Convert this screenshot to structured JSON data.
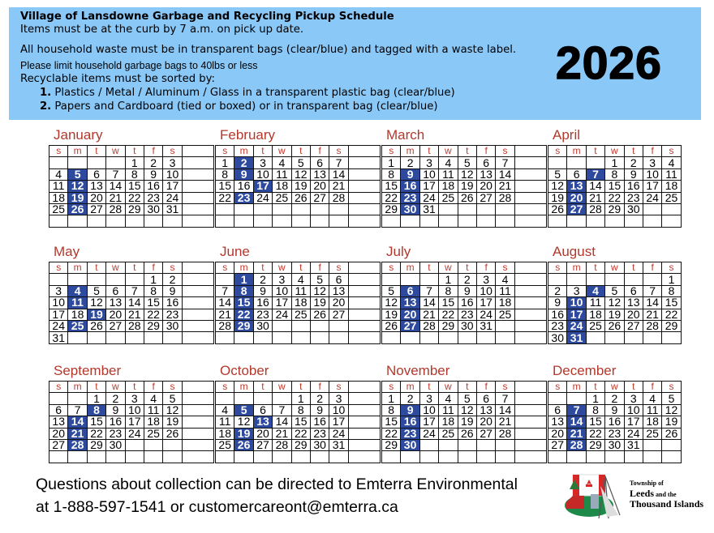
{
  "header": {
    "title": "Village of Lansdowne Garbage and Recycling Pickup Schedule",
    "curb_note": "Items must be at the curb by 7 a.m. on pick up date.",
    "bags_note": "All household waste must be in transparent bags (clear/blue) and tagged with a waste label.",
    "weight_note": "Please limit household garbage bags to 40lbs or less",
    "sort_intro": "Recyclable items must be sorted by:",
    "sort_items": [
      {
        "num": "1.",
        "text": " Plastics / Metal / Aluminum / Glass in a transparent plastic bag (clear/blue)"
      },
      {
        "num": "2.",
        "text": " Papers and Cardboard (tied or boxed) or in transparent bag (clear/blue)"
      }
    ],
    "year": "2026"
  },
  "colors": {
    "header_bg": "#8ac8f8",
    "pickup_highlight": "#2e4a9e",
    "month_name": "#b3382c"
  },
  "weekday_headers": [
    "s",
    "m",
    "t",
    "w",
    "t",
    "f",
    "s"
  ],
  "months": [
    {
      "name": "January",
      "first_weekday": 4,
      "days": 31,
      "pickups": [
        5,
        12,
        19,
        26
      ]
    },
    {
      "name": "February",
      "first_weekday": 0,
      "days": 28,
      "pickups": [
        2,
        9,
        17,
        23
      ]
    },
    {
      "name": "March",
      "first_weekday": 0,
      "days": 31,
      "pickups": [
        9,
        16,
        23,
        30
      ]
    },
    {
      "name": "April",
      "first_weekday": 3,
      "days": 30,
      "pickups": [
        7,
        13,
        20,
        27
      ]
    },
    {
      "name": "May",
      "first_weekday": 5,
      "days": 31,
      "pickups": [
        4,
        11,
        19,
        25
      ]
    },
    {
      "name": "June",
      "first_weekday": 1,
      "days": 30,
      "pickups": [
        1,
        8,
        15,
        22,
        29
      ]
    },
    {
      "name": "July",
      "first_weekday": 3,
      "days": 31,
      "pickups": [
        6,
        13,
        20,
        27
      ]
    },
    {
      "name": "August",
      "first_weekday": 6,
      "days": 31,
      "pickups": [
        4,
        10,
        17,
        24,
        31
      ]
    },
    {
      "name": "September",
      "first_weekday": 2,
      "days": 30,
      "pickups": [
        8,
        14,
        21,
        28
      ]
    },
    {
      "name": "October",
      "first_weekday": 4,
      "days": 31,
      "pickups": [
        5,
        13,
        19,
        26
      ]
    },
    {
      "name": "November",
      "first_weekday": 0,
      "days": 30,
      "pickups": [
        9,
        16,
        23,
        30
      ]
    },
    {
      "name": "December",
      "first_weekday": 2,
      "days": 31,
      "pickups": [
        7,
        14,
        21,
        28
      ]
    }
  ],
  "footer": {
    "line1": "Questions about collection can be directed to Emterra Environmental",
    "line2": "at 1-888-597-1541 or customercareont@emterra.ca"
  },
  "logo": {
    "line1": "Township of",
    "line2a": "Leeds",
    "line2b": " and the",
    "line3": "Thousand Islands"
  }
}
